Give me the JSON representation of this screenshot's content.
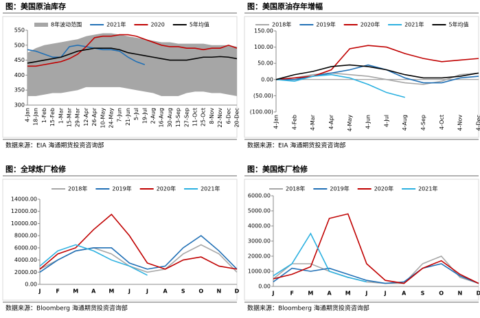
{
  "chart_data": [
    {
      "type": "line",
      "title": "图：美国原油库存",
      "source": "数据来源：EIA    海通期货投资咨询部",
      "categories": [
        "4-Jan",
        "18-Jan",
        "1-Feb",
        "15-Feb",
        "1-Mar",
        "15-Mar",
        "29-Mar",
        "12-Apr",
        "26-Apr",
        "10-May",
        "24-May",
        "7-Jun",
        "21-Jun",
        "5-Jul",
        "19-Jul",
        "2-Aug",
        "16-Aug",
        "30-Aug",
        "13-Sep",
        "27-Sep",
        "11-Oct",
        "25-Oct",
        "8-Nov",
        "22-Nov",
        "6-Dec",
        "20-Dec"
      ],
      "series": [
        {
          "name": "8年波动范围",
          "color": "#a6a6a6",
          "high": [
            475,
            490,
            500,
            505,
            510,
            515,
            520,
            530,
            535,
            540,
            540,
            535,
            530,
            525,
            520,
            515,
            510,
            510,
            505,
            505,
            505,
            505,
            500,
            500,
            500,
            495
          ],
          "low": [
            330,
            330,
            335,
            340,
            340,
            345,
            350,
            360,
            360,
            360,
            360,
            360,
            355,
            350,
            345,
            340,
            330,
            330,
            330,
            340,
            345,
            345,
            340,
            340,
            335,
            330
          ]
        },
        {
          "name": "2021年",
          "color": "#1f6fb5",
          "values": [
            485,
            480,
            470,
            460,
            460,
            495,
            500,
            495,
            490,
            485,
            485,
            480,
            460,
            445,
            435,
            null,
            null,
            null,
            null,
            null,
            null,
            null,
            null,
            null,
            null,
            null
          ]
        },
        {
          "name": "2020",
          "color": "#c00000",
          "values": [
            430,
            430,
            435,
            440,
            445,
            455,
            470,
            495,
            525,
            530,
            530,
            535,
            535,
            530,
            520,
            510,
            500,
            495,
            495,
            490,
            490,
            485,
            490,
            490,
            500,
            490
          ]
        },
        {
          "name": "5年均值",
          "color": "#000000",
          "values": [
            440,
            445,
            450,
            455,
            460,
            470,
            480,
            485,
            490,
            490,
            490,
            485,
            475,
            470,
            465,
            460,
            455,
            450,
            450,
            450,
            455,
            460,
            460,
            462,
            460,
            455
          ]
        }
      ],
      "ylim": [
        300,
        550
      ],
      "yticks": [
        300,
        350,
        400,
        450,
        500,
        550
      ]
    },
    {
      "type": "line",
      "title": "图：美国原油存年增幅",
      "source": "数据来源：EIA    海通期货投资咨询部",
      "categories": [
        "4-Jan",
        "4-Feb",
        "4-Mar",
        "4-Apr",
        "4-May",
        "4-Jun",
        "4-Jul",
        "4-Aug",
        "4-Sep",
        "4-Oct",
        "4-Nov",
        "4-Dec"
      ],
      "series": [
        {
          "name": "2018年",
          "color": "#a6a6a6",
          "values": [
            0,
            5,
            15,
            20,
            15,
            10,
            0,
            -10,
            -15,
            -5,
            15,
            20
          ]
        },
        {
          "name": "2019年",
          "color": "#1f6fb5",
          "values": [
            0,
            0,
            10,
            20,
            30,
            45,
            30,
            5,
            -10,
            -10,
            5,
            10
          ]
        },
        {
          "name": "2020年",
          "color": "#c00000",
          "values": [
            0,
            5,
            10,
            30,
            95,
            105,
            100,
            80,
            65,
            55,
            60,
            65
          ]
        },
        {
          "name": "2021年",
          "color": "#2ab0e0",
          "values": [
            0,
            -5,
            10,
            15,
            5,
            -15,
            -40,
            -55,
            null,
            null,
            null,
            null
          ]
        },
        {
          "name": "5年均值",
          "color": "#000000",
          "values": [
            0,
            15,
            25,
            40,
            45,
            40,
            30,
            15,
            5,
            5,
            10,
            20
          ]
        }
      ],
      "ylim": [
        -100,
        150
      ],
      "yticks": [
        {
          "value": -100,
          "label": "(100.00)"
        },
        {
          "value": -50,
          "label": "(50.00)"
        },
        {
          "value": 0,
          "label": "0.00"
        },
        {
          "value": 50,
          "label": "50.00"
        },
        {
          "value": 100,
          "label": "100.00"
        },
        {
          "value": 150,
          "label": "150.00"
        }
      ]
    },
    {
      "type": "line",
      "title": "图：全球炼厂检修",
      "source": "数据来源：Bloomberg  海通期货投资咨询部",
      "categories": [
        "J",
        "F",
        "M",
        "A",
        "M",
        "J",
        "J",
        "A",
        "S",
        "O",
        "N",
        "D"
      ],
      "series": [
        {
          "name": "2018年",
          "color": "#a6a6a6",
          "values": [
            2500,
            4000,
            5500,
            6000,
            5000,
            3000,
            2000,
            2500,
            5000,
            6500,
            5000,
            2000
          ]
        },
        {
          "name": "2019年",
          "color": "#1f6fb5",
          "values": [
            2000,
            4000,
            5500,
            6000,
            6000,
            3500,
            2500,
            3000,
            6000,
            8000,
            5500,
            2500
          ]
        },
        {
          "name": "2020年",
          "color": "#c00000",
          "values": [
            2500,
            5000,
            6000,
            9000,
            11500,
            8000,
            3500,
            2500,
            4000,
            4500,
            3000,
            2500
          ]
        },
        {
          "name": "2021年",
          "color": "#2ab0e0",
          "values": [
            3000,
            5500,
            6500,
            5500,
            4000,
            3000,
            1500,
            null,
            null,
            null,
            null,
            null
          ]
        }
      ],
      "ylim": [
        0,
        14000
      ],
      "yticks": [
        {
          "value": 0,
          "label": "0.00"
        },
        {
          "value": 2000,
          "label": "2000.00"
        },
        {
          "value": 4000,
          "label": "4000.00"
        },
        {
          "value": 6000,
          "label": "6000.00"
        },
        {
          "value": 8000,
          "label": "8000.00"
        },
        {
          "value": 10000,
          "label": "10000.00"
        },
        {
          "value": 12000,
          "label": "12000.00"
        },
        {
          "value": 14000,
          "label": "14000.00"
        }
      ]
    },
    {
      "type": "line",
      "title": "图：美国炼厂检修",
      "source": "数据来源：Bloomberg  海通期货投资咨询部",
      "categories": [
        "J",
        "F",
        "M",
        "A",
        "M",
        "J",
        "J",
        "A",
        "S",
        "O",
        "N",
        "D"
      ],
      "series": [
        {
          "name": "2018年",
          "color": "#a6a6a6",
          "values": [
            500,
            1500,
            1500,
            1000,
            600,
            300,
            200,
            200,
            1500,
            2000,
            600,
            200
          ]
        },
        {
          "name": "2019年",
          "color": "#1f6fb5",
          "values": [
            300,
            1200,
            1000,
            1200,
            800,
            400,
            200,
            300,
            1200,
            1500,
            700,
            200
          ]
        },
        {
          "name": "2020年",
          "color": "#c00000",
          "values": [
            500,
            800,
            1300,
            4500,
            4800,
            1500,
            400,
            200,
            1200,
            1700,
            800,
            200
          ]
        },
        {
          "name": "2021年",
          "color": "#2ab0e0",
          "values": [
            700,
            1500,
            3500,
            1000,
            600,
            300,
            null,
            null,
            null,
            null,
            null,
            null
          ]
        }
      ],
      "ylim": [
        0,
        6000
      ],
      "yticks": [
        {
          "value": 0,
          "label": "0.00"
        },
        {
          "value": 1000,
          "label": "1000.00"
        },
        {
          "value": 2000,
          "label": "2000.00"
        },
        {
          "value": 3000,
          "label": "3000.00"
        },
        {
          "value": 4000,
          "label": "4000.00"
        },
        {
          "value": 5000,
          "label": "5000.00"
        },
        {
          "value": 6000,
          "label": "6000.00"
        }
      ]
    }
  ]
}
